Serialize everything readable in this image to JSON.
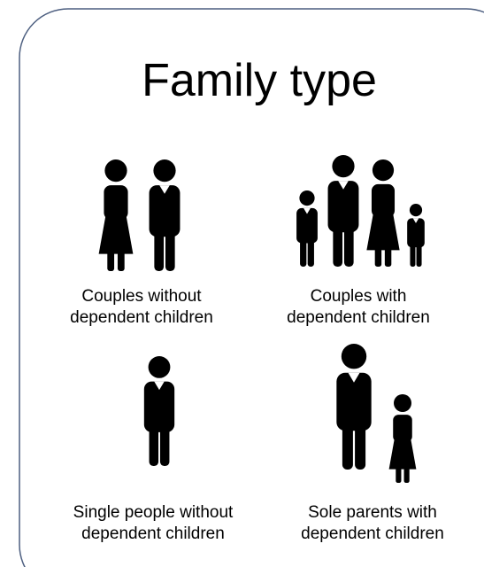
{
  "title": "Family type",
  "items": [
    {
      "lines": [
        "Couples without",
        "dependent children"
      ]
    },
    {
      "lines": [
        "Couples with",
        "dependent children"
      ]
    },
    {
      "lines": [
        "Single people without",
        "dependent children"
      ]
    },
    {
      "lines": [
        "Sole parents with",
        "dependent children"
      ]
    }
  ]
}
